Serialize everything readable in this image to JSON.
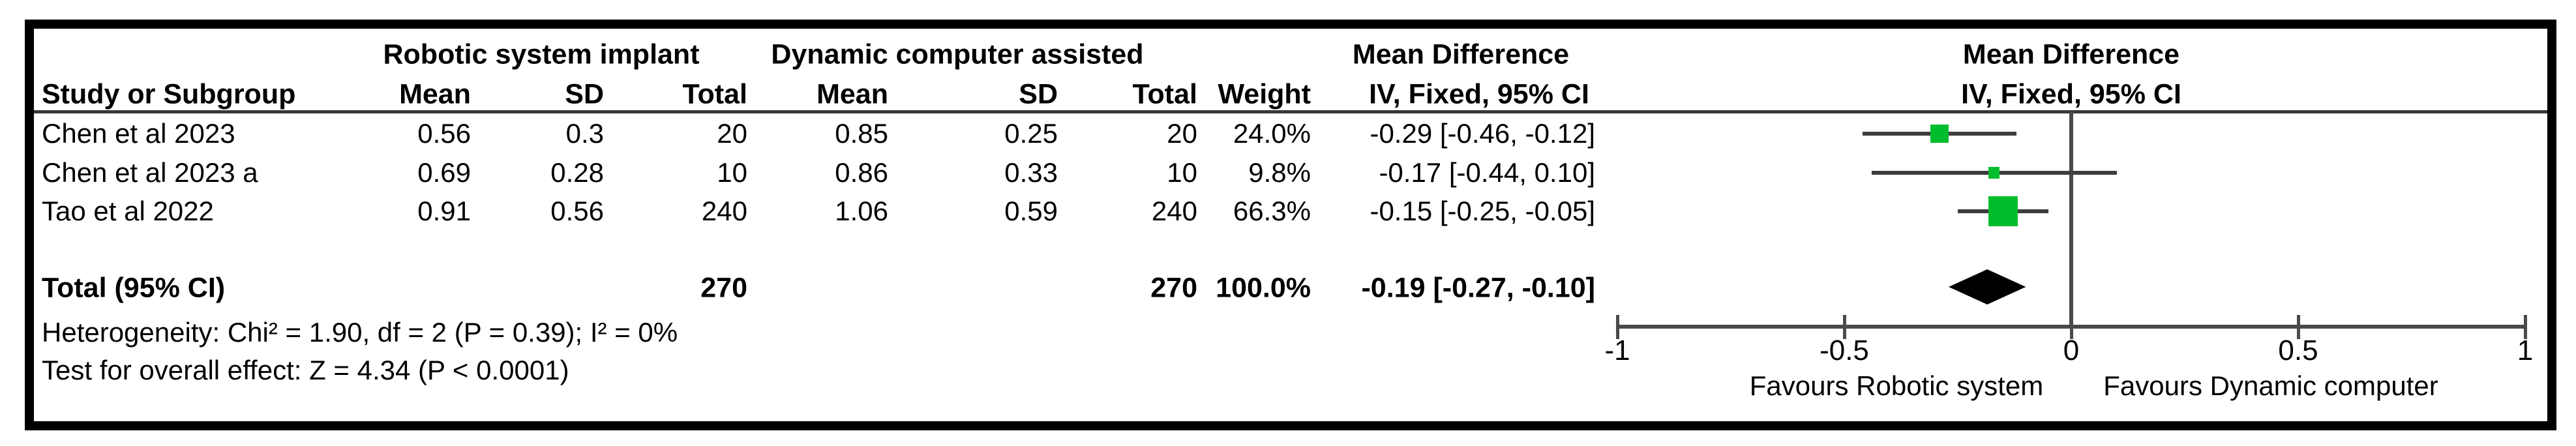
{
  "headers": {
    "group1": "Robotic system implant",
    "group2": "Dynamic computer assisted",
    "mean_difference": "Mean Difference",
    "method_ci": "IV, Fixed, 95% CI",
    "study": "Study or Subgroup",
    "mean": "Mean",
    "sd": "SD",
    "total": "Total",
    "weight": "Weight"
  },
  "table": {
    "rows": [
      {
        "study": "Chen et al 2023",
        "mean1": "0.56",
        "sd1": "0.3",
        "total1": "20",
        "mean2": "0.85",
        "sd2": "0.25",
        "total2": "20",
        "weight": "24.0%",
        "ci": "-0.29 [-0.46, -0.12]"
      },
      {
        "study": "Chen et al 2023 a",
        "mean1": "0.69",
        "sd1": "0.28",
        "total1": "10",
        "mean2": "0.86",
        "sd2": "0.33",
        "total2": "10",
        "weight": "9.8%",
        "ci": "-0.17 [-0.44, 0.10]"
      },
      {
        "study": "Tao et al 2022",
        "mean1": "0.91",
        "sd1": "0.56",
        "total1": "240",
        "mean2": "1.06",
        "sd2": "0.59",
        "total2": "240",
        "weight": "66.3%",
        "ci": "-0.15 [-0.25, -0.05]"
      }
    ]
  },
  "total_row": {
    "label": "Total (95% CI)",
    "total1": "270",
    "total2": "270",
    "weight": "100.0%",
    "ci": "-0.19 [-0.27, -0.10]"
  },
  "footnotes": {
    "heterogeneity": "Heterogeneity: Chi² = 1.90, df = 2 (P = 0.39); I² = 0%",
    "overall_effect": "Test for overall effect: Z = 4.34 (P < 0.0001)"
  },
  "chart_data": {
    "type": "forest",
    "effect_measure": "Mean Difference",
    "method": "IV, Fixed, 95% CI",
    "xlim": [
      -1,
      1
    ],
    "xticks": [
      -1,
      -0.5,
      0,
      0.5,
      1
    ],
    "studies": [
      {
        "name": "Chen et al 2023",
        "md": -0.29,
        "ci_low": -0.46,
        "ci_high": -0.12,
        "weight_pct": 24.0
      },
      {
        "name": "Chen et al 2023 a",
        "md": -0.17,
        "ci_low": -0.44,
        "ci_high": 0.1,
        "weight_pct": 9.8
      },
      {
        "name": "Tao et al 2022",
        "md": -0.15,
        "ci_low": -0.25,
        "ci_high": -0.05,
        "weight_pct": 66.3
      }
    ],
    "total": {
      "name": "Total (95% CI)",
      "md": -0.19,
      "ci_low": -0.27,
      "ci_high": -0.1,
      "weight_pct": 100.0
    },
    "favours_left": "Favours Robotic system",
    "favours_right": "Favours Dynamic computer",
    "legend_position": "bottom"
  },
  "colors": {
    "marker_green": "#00BD2D",
    "line_gray": "#3d3d3d",
    "axis_gray": "#4a4a4a",
    "diamond_black": "#000000",
    "frame_black": "#000000"
  }
}
